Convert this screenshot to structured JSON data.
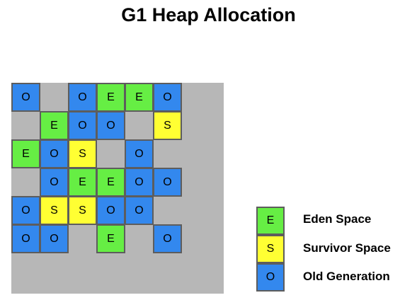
{
  "title": "G1 Heap Allocation",
  "colors": {
    "heap_background": "#b7b7b7",
    "eden": "#66ee44",
    "survivor": "#ffff33",
    "old": "#3388ee"
  },
  "region_types": {
    "E": {
      "letter": "E",
      "color": "#66ee44"
    },
    "S": {
      "letter": "S",
      "color": "#ffff33"
    },
    "O": {
      "letter": "O",
      "color": "#3388ee"
    }
  },
  "heap": {
    "columns": 7,
    "rows": 7,
    "grid": [
      [
        "O",
        "",
        "O",
        "E",
        "E",
        "O",
        ""
      ],
      [
        "",
        "E",
        "O",
        "O",
        "",
        "S",
        ""
      ],
      [
        "E",
        "O",
        "S",
        "",
        "O",
        "",
        ""
      ],
      [
        "",
        "O",
        "E",
        "E",
        "O",
        "O",
        ""
      ],
      [
        "O",
        "S",
        "S",
        "O",
        "O",
        "",
        ""
      ],
      [
        "O",
        "O",
        "",
        "E",
        "",
        "O",
        ""
      ],
      [
        "",
        "",
        "",
        "",
        "",
        "",
        ""
      ]
    ]
  },
  "legend": [
    {
      "letter": "E",
      "label": "Eden Space",
      "color": "#66ee44"
    },
    {
      "letter": "S",
      "label": "Survivor Space",
      "color": "#ffff33"
    },
    {
      "letter": "O",
      "label": "Old Generation",
      "color": "#3388ee"
    }
  ]
}
